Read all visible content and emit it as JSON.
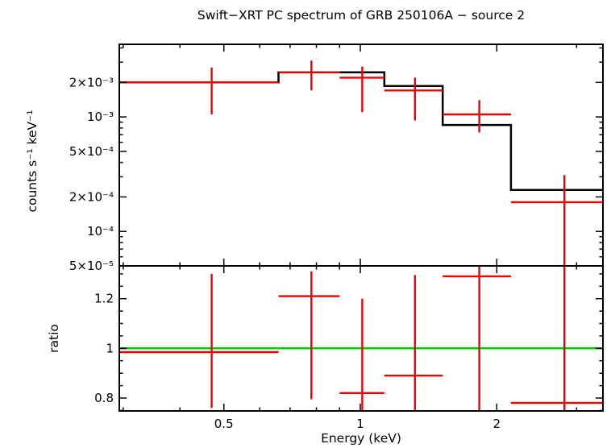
{
  "colors": {
    "data": "#ee0000",
    "model": "#000000",
    "reference": "#00cc00",
    "frame": "#000000",
    "background": "#ffffff"
  },
  "chart_data": {
    "type": "line",
    "title": "Swift−XRT PC spectrum of GRB 250106A − source 2",
    "xlabel": "Energy (keV)",
    "xscale": "log",
    "xlim": [
      0.294,
      3.43
    ],
    "x_ticks_major": [
      {
        "value": 0.5,
        "label": "0.5"
      },
      {
        "value": 1,
        "label": "1"
      },
      {
        "value": 2,
        "label": "2"
      }
    ],
    "x_ticks_minor": [
      0.3,
      0.4,
      0.6,
      0.7,
      0.8,
      0.9,
      3
    ],
    "panels": [
      {
        "name": "spectrum",
        "ylabel": "counts s⁻¹ keV⁻¹",
        "yscale": "log",
        "ylim": [
          5e-05,
          0.0043
        ],
        "y_ticks_major": [
          {
            "value": 0.002,
            "label": "2×10⁻³"
          },
          {
            "value": 0.001,
            "label": "10⁻³"
          },
          {
            "value": 0.0005,
            "label": "5×10⁻⁴"
          },
          {
            "value": 0.0002,
            "label": "2×10⁻⁴"
          },
          {
            "value": 0.0001,
            "label": "10⁻⁴"
          },
          {
            "value": 5e-05,
            "label": "5×10⁻⁵"
          }
        ],
        "y_ticks_minor": [
          6e-05,
          7e-05,
          8e-05,
          9e-05,
          0.0003,
          0.0004,
          0.0006,
          0.0007,
          0.0008,
          0.0009,
          0.003,
          0.004
        ],
        "model_steps": [
          {
            "xlo": 0.294,
            "xhi": 0.66,
            "y": 0.002
          },
          {
            "xlo": 0.66,
            "xhi": 1.13,
            "y": 0.00245
          },
          {
            "xlo": 1.13,
            "xhi": 1.52,
            "y": 0.00186
          },
          {
            "xlo": 1.52,
            "xhi": 2.15,
            "y": 0.00085
          },
          {
            "xlo": 2.15,
            "xhi": 3.43,
            "y": 0.00023
          }
        ],
        "points": [
          {
            "x": 0.47,
            "xlo": 0.294,
            "xhi": 0.66,
            "y": 0.002,
            "ylo": 0.00105,
            "yhi": 0.0027
          },
          {
            "x": 0.78,
            "xlo": 0.66,
            "xhi": 0.9,
            "y": 0.00245,
            "ylo": 0.0017,
            "yhi": 0.0031
          },
          {
            "x": 1.01,
            "xlo": 0.9,
            "xhi": 1.13,
            "y": 0.0022,
            "ylo": 0.0011,
            "yhi": 0.00275
          },
          {
            "x": 1.32,
            "xlo": 1.13,
            "xhi": 1.52,
            "y": 0.0017,
            "ylo": 0.00093,
            "yhi": 0.0022
          },
          {
            "x": 1.83,
            "xlo": 1.52,
            "xhi": 2.15,
            "y": 0.00105,
            "ylo": 0.00073,
            "yhi": 0.0014
          },
          {
            "x": 2.82,
            "xlo": 2.15,
            "xhi": 3.43,
            "y": 0.00018,
            "ylo": 1e-05,
            "yhi": 0.00031
          }
        ]
      },
      {
        "name": "ratio",
        "ylabel": "ratio",
        "yscale": "linear",
        "ylim": [
          0.748,
          1.332
        ],
        "reference_line": 1,
        "y_ticks_major": [
          {
            "value": 0.8,
            "label": "0.8"
          },
          {
            "value": 1,
            "label": "1"
          },
          {
            "value": 1.2,
            "label": "1.2"
          }
        ],
        "y_ticks_minor": [
          0.75,
          0.85,
          0.9,
          0.95,
          1.05,
          1.1,
          1.15,
          1.25,
          1.3
        ],
        "points": [
          {
            "x": 0.47,
            "xlo": 0.294,
            "xhi": 0.66,
            "y": 0.985,
            "ylo": 0.76,
            "yhi": 1.3
          },
          {
            "x": 0.78,
            "xlo": 0.66,
            "xhi": 0.9,
            "y": 1.21,
            "ylo": 0.795,
            "yhi": 1.31
          },
          {
            "x": 1.01,
            "xlo": 0.9,
            "xhi": 1.13,
            "y": 0.82,
            "ylo": 0.7,
            "yhi": 1.2
          },
          {
            "x": 1.32,
            "xlo": 1.13,
            "xhi": 1.52,
            "y": 0.89,
            "ylo": 0.7,
            "yhi": 1.295
          },
          {
            "x": 1.83,
            "xlo": 1.52,
            "xhi": 2.15,
            "y": 1.29,
            "ylo": 0.7,
            "yhi": 1.4
          },
          {
            "x": 2.82,
            "xlo": 2.15,
            "xhi": 3.43,
            "y": 0.78,
            "ylo": 0.7,
            "yhi": 1.4
          }
        ]
      }
    ]
  }
}
